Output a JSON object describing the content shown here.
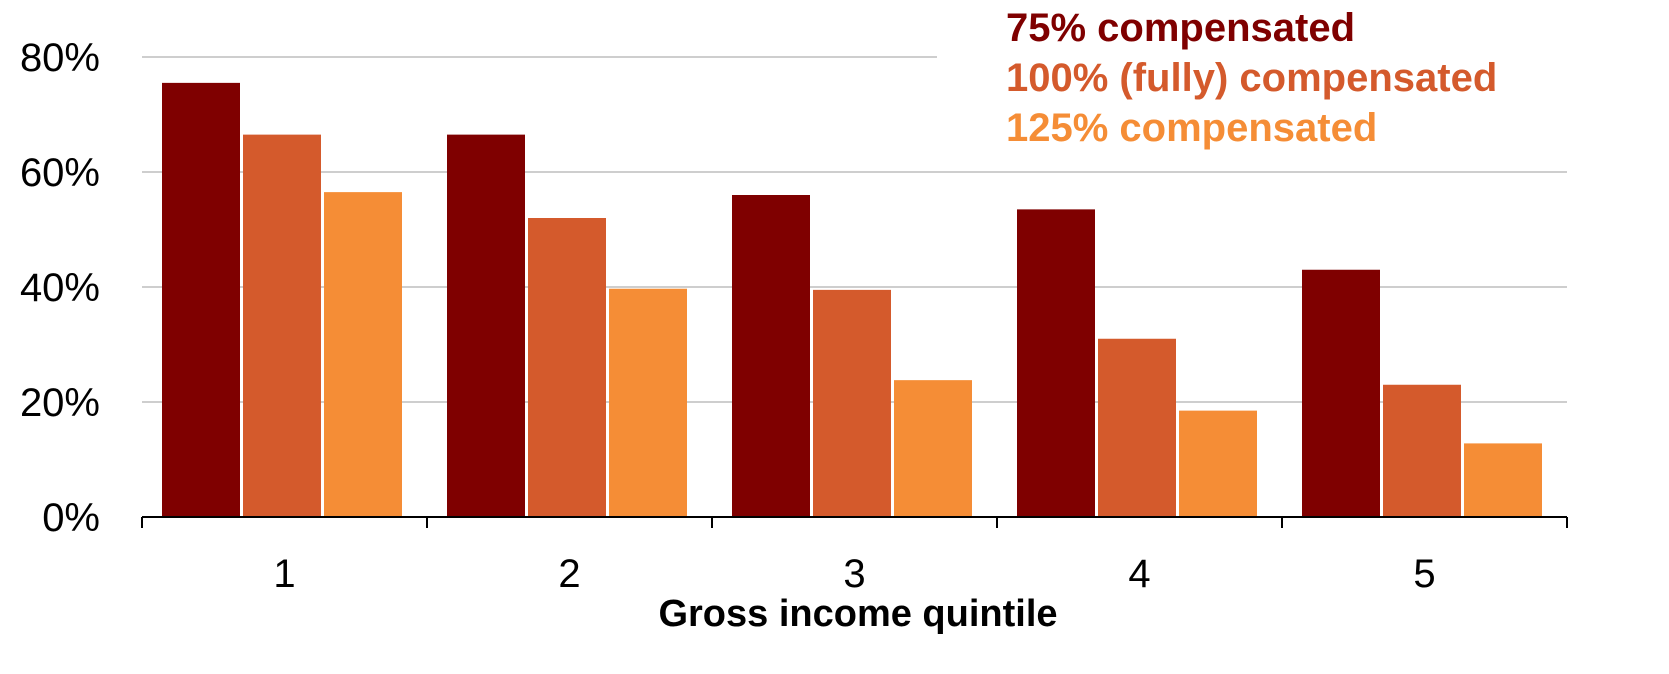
{
  "chart_data": {
    "type": "bar",
    "title": "",
    "xlabel": "Gross income quintile",
    "ylabel": "",
    "categories": [
      "1",
      "2",
      "3",
      "4",
      "5"
    ],
    "series": [
      {
        "name": "75% compensated",
        "color": "#7f0000",
        "values": [
          75.5,
          66.5,
          56.0,
          53.5,
          43.0
        ]
      },
      {
        "name": "100% (fully) compensated",
        "color": "#d45a2c",
        "values": [
          66.5,
          52.0,
          39.5,
          31.0,
          23.0
        ]
      },
      {
        "name": "125% compensated",
        "color": "#f58d36",
        "values": [
          56.5,
          39.7,
          23.8,
          18.5,
          12.8
        ]
      }
    ],
    "ylim": [
      0,
      80
    ],
    "yticks": [
      0,
      20,
      40,
      60,
      80
    ],
    "ytick_labels": [
      "0%",
      "20%",
      "40%",
      "60%",
      "80%"
    ],
    "grid": true,
    "legend_position": "top-right"
  }
}
